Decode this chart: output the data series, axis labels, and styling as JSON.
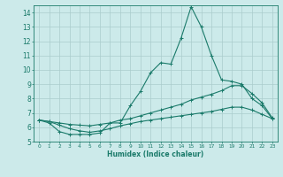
{
  "xlabel": "Humidex (Indice chaleur)",
  "bg_color": "#cceaea",
  "grid_color": "#aacccc",
  "line_color": "#1a7a6a",
  "xlim": [
    -0.5,
    23.5
  ],
  "ylim": [
    5,
    14.5
  ],
  "yticks": [
    5,
    6,
    7,
    8,
    9,
    10,
    11,
    12,
    13,
    14
  ],
  "xticks": [
    0,
    1,
    2,
    3,
    4,
    5,
    6,
    7,
    8,
    9,
    10,
    11,
    12,
    13,
    14,
    15,
    16,
    17,
    18,
    19,
    20,
    21,
    22,
    23
  ],
  "line1_x": [
    0,
    1,
    2,
    3,
    4,
    5,
    6,
    7,
    8,
    9,
    10,
    11,
    12,
    13,
    14,
    15,
    16,
    17,
    18,
    19,
    20,
    21,
    22,
    23
  ],
  "line1_y": [
    6.5,
    6.3,
    5.7,
    5.5,
    5.5,
    5.5,
    5.6,
    6.3,
    6.3,
    7.5,
    8.5,
    9.8,
    10.5,
    10.4,
    12.2,
    14.4,
    13.0,
    11.0,
    9.3,
    9.2,
    9.0,
    8.0,
    7.5,
    6.6
  ],
  "line2_x": [
    0,
    1,
    2,
    3,
    4,
    5,
    6,
    7,
    8,
    9,
    10,
    11,
    12,
    13,
    14,
    15,
    16,
    17,
    18,
    19,
    20,
    21,
    22,
    23
  ],
  "line2_y": [
    6.5,
    6.4,
    6.3,
    6.2,
    6.15,
    6.1,
    6.2,
    6.3,
    6.5,
    6.6,
    6.8,
    7.0,
    7.2,
    7.4,
    7.6,
    7.9,
    8.1,
    8.3,
    8.55,
    8.9,
    8.9,
    8.35,
    7.7,
    6.65
  ],
  "line3_x": [
    0,
    1,
    2,
    3,
    4,
    5,
    6,
    7,
    8,
    9,
    10,
    11,
    12,
    13,
    14,
    15,
    16,
    17,
    18,
    19,
    20,
    21,
    22,
    23
  ],
  "line3_y": [
    6.5,
    6.4,
    6.15,
    5.9,
    5.75,
    5.65,
    5.75,
    5.9,
    6.1,
    6.25,
    6.4,
    6.5,
    6.6,
    6.7,
    6.8,
    6.9,
    7.0,
    7.1,
    7.25,
    7.4,
    7.4,
    7.2,
    6.9,
    6.6
  ]
}
